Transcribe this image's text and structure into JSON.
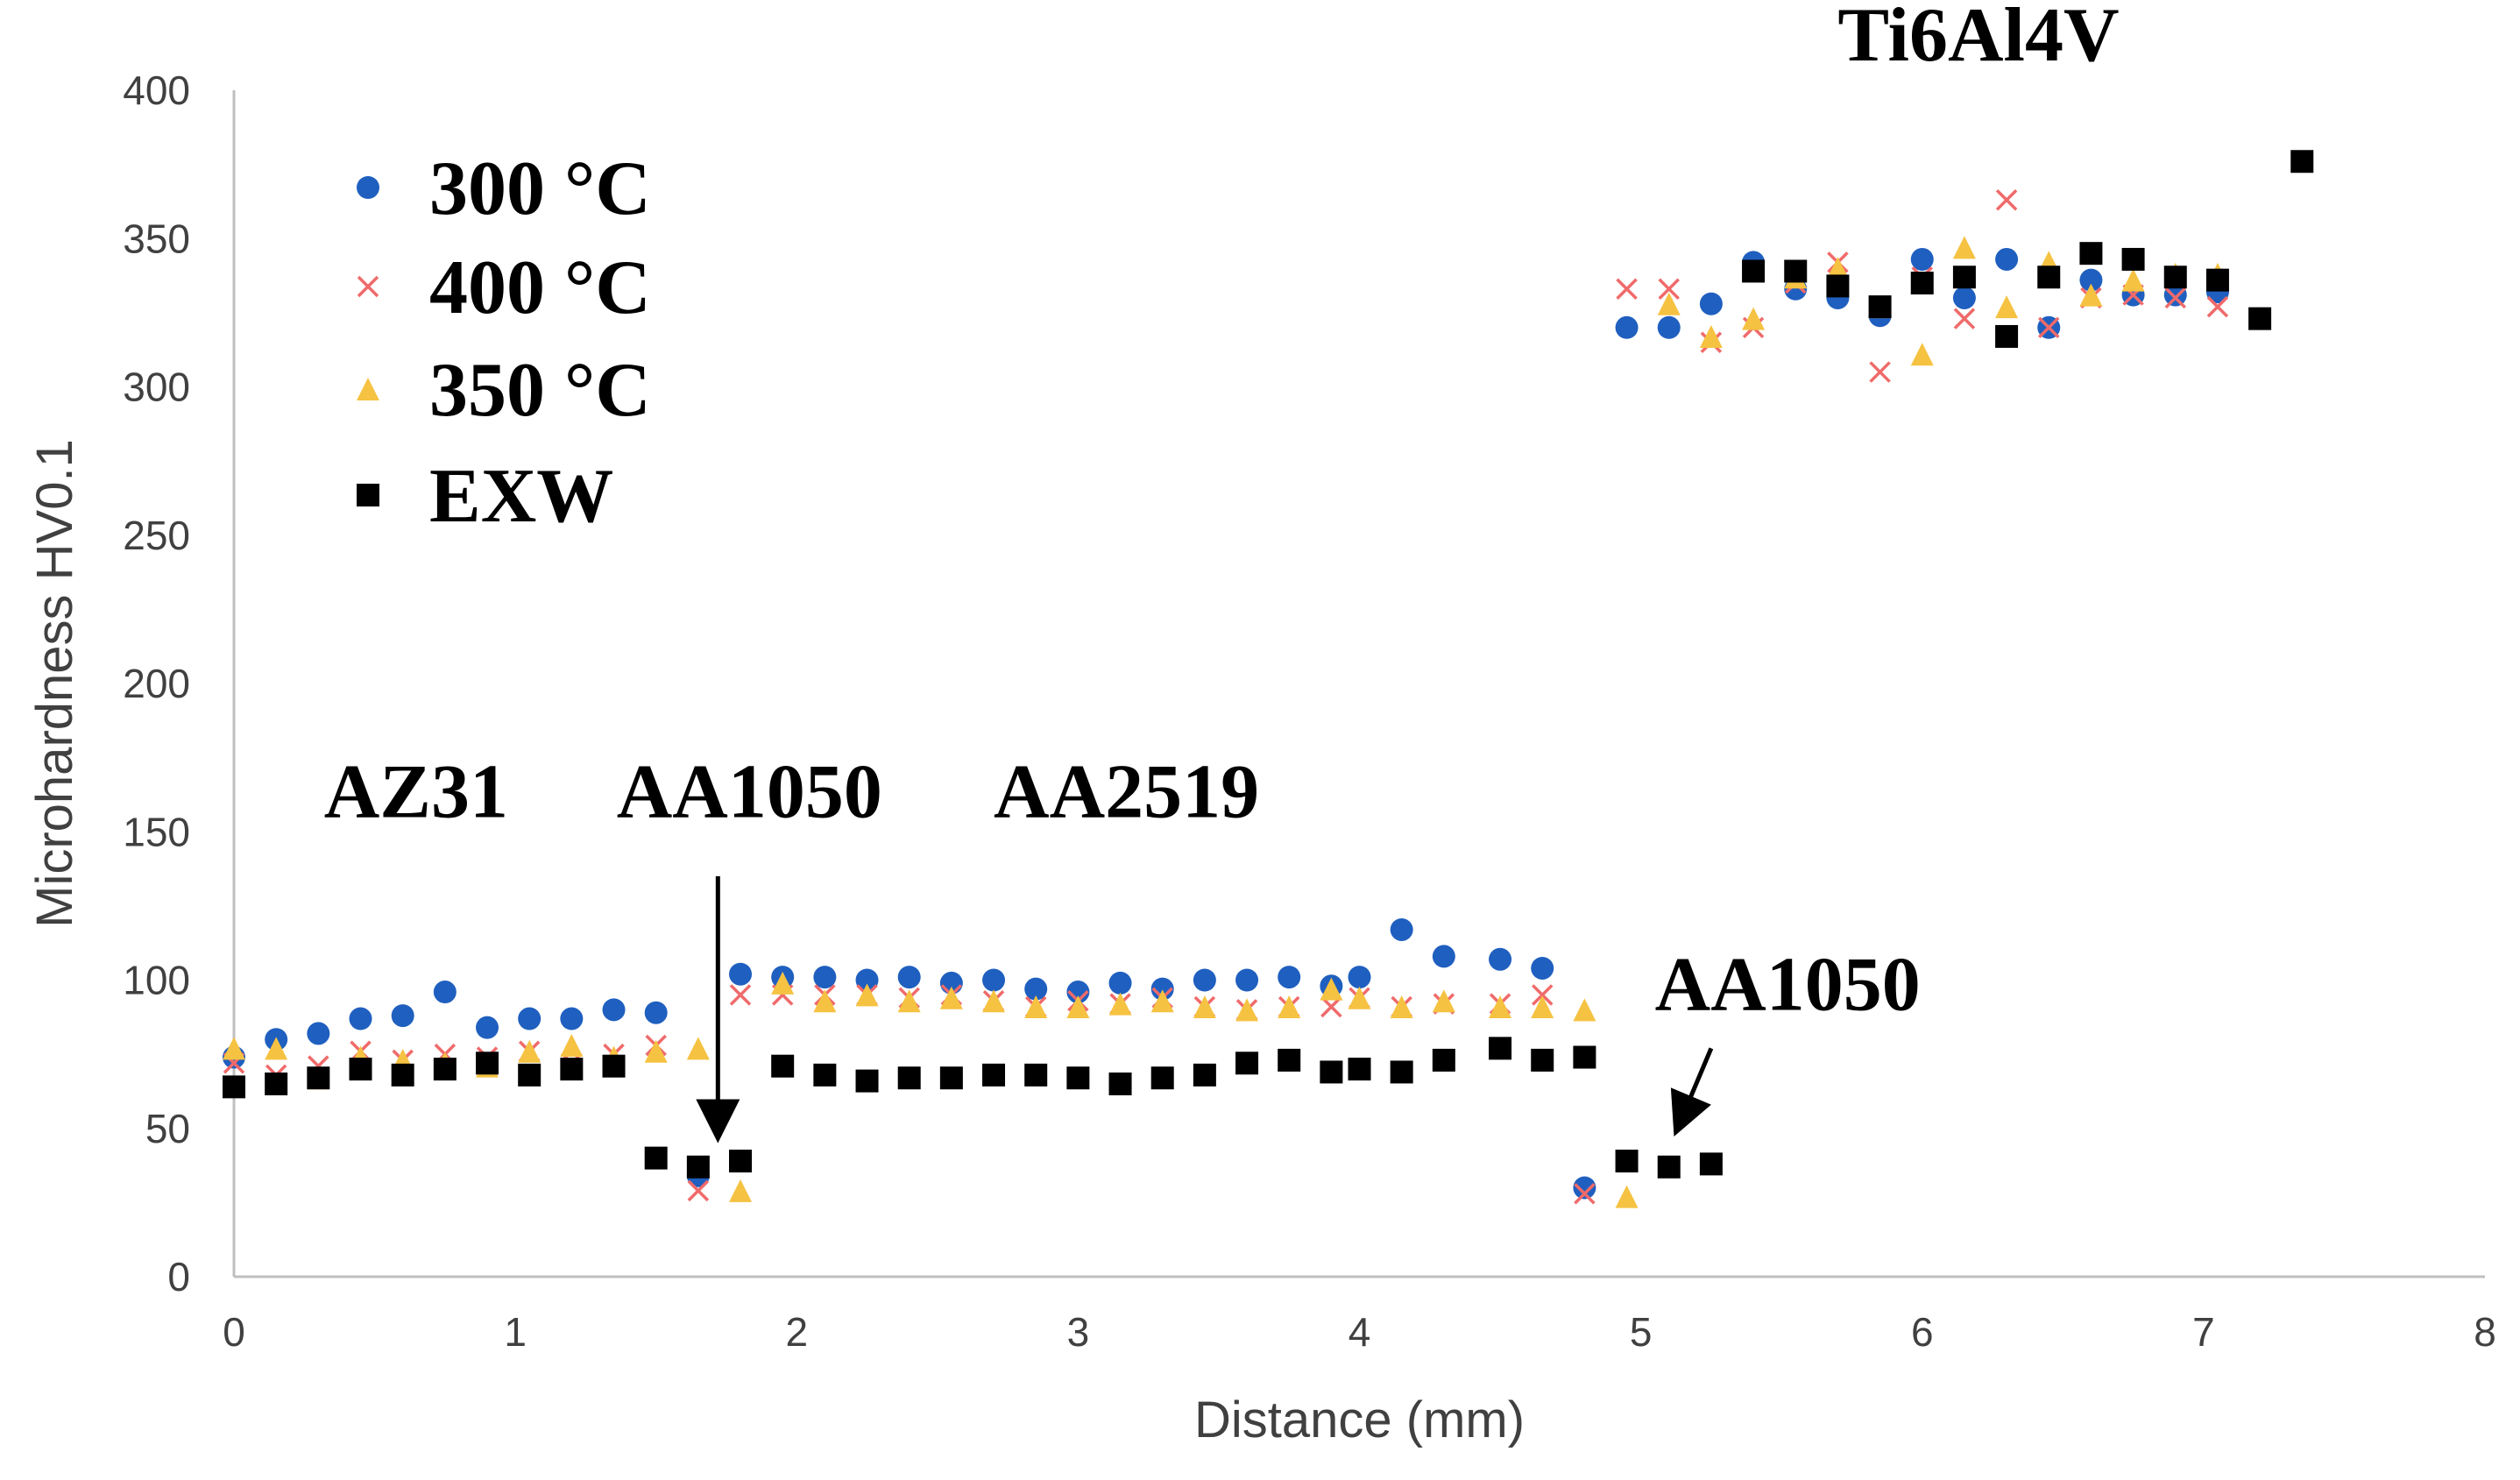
{
  "chart_data": {
    "type": "scatter",
    "title": "",
    "xlabel": "Distance (mm)",
    "ylabel": "Microhardness HV0.1",
    "xlim": [
      0,
      8
    ],
    "ylim": [
      0,
      400
    ],
    "xticks": [
      0,
      1,
      2,
      3,
      4,
      5,
      6,
      7,
      8
    ],
    "yticks": [
      0,
      50,
      100,
      150,
      200,
      250,
      300,
      350,
      400
    ],
    "grid": false,
    "legend_position": "top-left",
    "colors": {
      "300 °C": "#1f5fbf",
      "400 °C": "#f06a6a",
      "350 °C": "#f5c242",
      "EXW": "#000000"
    },
    "series": [
      {
        "name": "300 °C",
        "marker": "circle",
        "points": [
          [
            0.0,
            74
          ],
          [
            0.15,
            80
          ],
          [
            0.3,
            82
          ],
          [
            0.45,
            87
          ],
          [
            0.6,
            88
          ],
          [
            0.75,
            96
          ],
          [
            0.9,
            84
          ],
          [
            1.05,
            87
          ],
          [
            1.2,
            87
          ],
          [
            1.35,
            90
          ],
          [
            1.5,
            89
          ],
          [
            1.65,
            34
          ],
          [
            1.8,
            102
          ],
          [
            1.95,
            101
          ],
          [
            2.1,
            101
          ],
          [
            2.25,
            100
          ],
          [
            2.4,
            101
          ],
          [
            2.55,
            99
          ],
          [
            2.7,
            100
          ],
          [
            2.85,
            97
          ],
          [
            3.0,
            96
          ],
          [
            3.15,
            99
          ],
          [
            3.3,
            97
          ],
          [
            3.45,
            100
          ],
          [
            3.6,
            100
          ],
          [
            3.75,
            101
          ],
          [
            3.9,
            98
          ],
          [
            4.0,
            101
          ],
          [
            4.15,
            117
          ],
          [
            4.3,
            108
          ],
          [
            4.5,
            107
          ],
          [
            4.65,
            104
          ],
          [
            4.8,
            30
          ],
          [
            4.95,
            320
          ],
          [
            5.1,
            320
          ],
          [
            5.25,
            328
          ],
          [
            5.4,
            342
          ],
          [
            5.55,
            333
          ],
          [
            5.7,
            330
          ],
          [
            5.85,
            324
          ],
          [
            6.0,
            343
          ],
          [
            6.15,
            330
          ],
          [
            6.3,
            343
          ],
          [
            6.45,
            320
          ],
          [
            6.6,
            336
          ],
          [
            6.75,
            331
          ],
          [
            6.9,
            331
          ],
          [
            7.05,
            332
          ]
        ]
      },
      {
        "name": "400 °C",
        "marker": "x",
        "points": [
          [
            0.0,
            72
          ],
          [
            0.15,
            68
          ],
          [
            0.3,
            71
          ],
          [
            0.45,
            76
          ],
          [
            0.6,
            73
          ],
          [
            0.75,
            75
          ],
          [
            0.9,
            74
          ],
          [
            1.05,
            76
          ],
          [
            1.2,
            72
          ],
          [
            1.35,
            75
          ],
          [
            1.5,
            78
          ],
          [
            1.65,
            29
          ],
          [
            1.8,
            95
          ],
          [
            1.95,
            95
          ],
          [
            2.1,
            95
          ],
          [
            2.25,
            95
          ],
          [
            2.4,
            94
          ],
          [
            2.55,
            95
          ],
          [
            2.7,
            93
          ],
          [
            2.85,
            91
          ],
          [
            3.0,
            93
          ],
          [
            3.15,
            92
          ],
          [
            3.3,
            94
          ],
          [
            3.45,
            91
          ],
          [
            3.6,
            90
          ],
          [
            3.75,
            91
          ],
          [
            3.9,
            91
          ],
          [
            4.0,
            94
          ],
          [
            4.15,
            91
          ],
          [
            4.3,
            92
          ],
          [
            4.5,
            92
          ],
          [
            4.65,
            95
          ],
          [
            4.8,
            28
          ],
          [
            4.95,
            333
          ],
          [
            5.1,
            333
          ],
          [
            5.25,
            315
          ],
          [
            5.4,
            320
          ],
          [
            5.55,
            335
          ],
          [
            5.7,
            342
          ],
          [
            5.85,
            305
          ],
          [
            6.0,
            337
          ],
          [
            6.15,
            323
          ],
          [
            6.3,
            363
          ],
          [
            6.45,
            320
          ],
          [
            6.6,
            330
          ],
          [
            6.75,
            331
          ],
          [
            6.9,
            330
          ],
          [
            7.05,
            327
          ]
        ]
      },
      {
        "name": "350 °C",
        "marker": "triangle",
        "points": [
          [
            0.0,
            77
          ],
          [
            0.15,
            77
          ],
          [
            0.3,
            67
          ],
          [
            0.45,
            74
          ],
          [
            0.6,
            73
          ],
          [
            0.75,
            72
          ],
          [
            0.9,
            71
          ],
          [
            1.05,
            76
          ],
          [
            1.2,
            78
          ],
          [
            1.35,
            74
          ],
          [
            1.5,
            76
          ],
          [
            1.65,
            77
          ],
          [
            1.8,
            29
          ],
          [
            1.95,
            99
          ],
          [
            2.1,
            93
          ],
          [
            2.25,
            95
          ],
          [
            2.4,
            93
          ],
          [
            2.55,
            94
          ],
          [
            2.7,
            93
          ],
          [
            2.85,
            91
          ],
          [
            3.0,
            91
          ],
          [
            3.15,
            92
          ],
          [
            3.3,
            93
          ],
          [
            3.45,
            91
          ],
          [
            3.6,
            90
          ],
          [
            3.75,
            91
          ],
          [
            3.9,
            97
          ],
          [
            4.0,
            94
          ],
          [
            4.15,
            91
          ],
          [
            4.3,
            93
          ],
          [
            4.5,
            91
          ],
          [
            4.65,
            91
          ],
          [
            4.8,
            90
          ],
          [
            4.95,
            27
          ],
          [
            5.1,
            328
          ],
          [
            5.25,
            317
          ],
          [
            5.4,
            323
          ],
          [
            5.55,
            337
          ],
          [
            5.7,
            340
          ],
          [
            5.85,
            327
          ],
          [
            6.0,
            311
          ],
          [
            6.15,
            347
          ],
          [
            6.3,
            327
          ],
          [
            6.45,
            342
          ],
          [
            6.6,
            331
          ],
          [
            6.75,
            336
          ],
          [
            6.9,
            338
          ],
          [
            7.05,
            338
          ]
        ]
      },
      {
        "name": "EXW",
        "marker": "square",
        "points": [
          [
            0.0,
            64
          ],
          [
            0.15,
            65
          ],
          [
            0.3,
            67
          ],
          [
            0.45,
            70
          ],
          [
            0.6,
            68
          ],
          [
            0.75,
            70
          ],
          [
            0.9,
            72
          ],
          [
            1.05,
            68
          ],
          [
            1.2,
            70
          ],
          [
            1.35,
            71
          ],
          [
            1.5,
            40
          ],
          [
            1.65,
            37
          ],
          [
            1.8,
            39
          ],
          [
            1.95,
            71
          ],
          [
            2.1,
            68
          ],
          [
            2.25,
            66
          ],
          [
            2.4,
            67
          ],
          [
            2.55,
            67
          ],
          [
            2.7,
            68
          ],
          [
            2.85,
            68
          ],
          [
            3.0,
            67
          ],
          [
            3.15,
            65
          ],
          [
            3.3,
            67
          ],
          [
            3.45,
            68
          ],
          [
            3.6,
            72
          ],
          [
            3.75,
            73
          ],
          [
            3.9,
            69
          ],
          [
            4.0,
            70
          ],
          [
            4.15,
            69
          ],
          [
            4.3,
            73
          ],
          [
            4.5,
            77
          ],
          [
            4.65,
            73
          ],
          [
            4.8,
            74
          ],
          [
            4.95,
            39
          ],
          [
            5.1,
            37
          ],
          [
            5.25,
            38
          ],
          [
            5.4,
            339
          ],
          [
            5.55,
            339
          ],
          [
            5.7,
            334
          ],
          [
            5.85,
            327
          ],
          [
            6.0,
            335
          ],
          [
            6.15,
            337
          ],
          [
            6.3,
            317
          ],
          [
            6.45,
            337
          ],
          [
            6.6,
            345
          ],
          [
            6.75,
            343
          ],
          [
            6.9,
            337
          ],
          [
            7.05,
            336
          ],
          [
            7.2,
            323
          ],
          [
            7.35,
            376
          ]
        ]
      }
    ],
    "annotations": [
      {
        "text": "Ti6Al4V",
        "x": 5.7,
        "y": 410
      },
      {
        "text": "AZ31",
        "x": 0.32,
        "y": 155
      },
      {
        "text": "AA1050",
        "x": 1.36,
        "y": 155
      },
      {
        "text": "AA2519",
        "x": 2.7,
        "y": 155
      },
      {
        "text": "AA1050",
        "x": 5.05,
        "y": 90
      },
      {
        "text": "",
        "arrow": true,
        "from": [
          1.72,
          135
        ],
        "to": [
          1.72,
          48
        ]
      },
      {
        "text": "",
        "arrow": true,
        "from": [
          5.25,
          77
        ],
        "to": [
          5.13,
          50
        ]
      }
    ]
  }
}
